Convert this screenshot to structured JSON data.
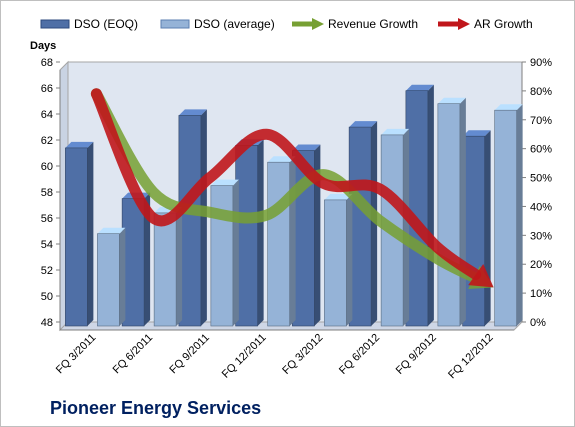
{
  "chart_data": {
    "type": "bar",
    "title": "Pioneer Energy Services",
    "ylabel": "Days",
    "categories": [
      "FQ 3/2011",
      "FQ 6/2011",
      "FQ 9/2011",
      "FQ 12/2011",
      "FQ 3/2012",
      "FQ 6/2012",
      "FQ 9/2012",
      "FQ 12/2012"
    ],
    "ylim": [
      48,
      68
    ],
    "yticks": [
      "48",
      "50",
      "52",
      "54",
      "56",
      "58",
      "60",
      "62",
      "64",
      "66",
      "68"
    ],
    "y2lim": [
      0,
      90
    ],
    "y2ticks": [
      "0%",
      "10%",
      "20%",
      "30%",
      "40%",
      "50%",
      "60%",
      "70%",
      "80%",
      "90%"
    ],
    "grid": false,
    "legend_position": "top",
    "series": [
      {
        "name": "DSO (EOQ)",
        "type": "bar",
        "color": "#4f6fa6",
        "values": [
          61.7,
          57.8,
          64.2,
          61.9,
          61.5,
          63.3,
          66.1,
          62.6
        ]
      },
      {
        "name": "DSO (average)",
        "type": "bar",
        "color": "#95b3d7",
        "values": [
          55.1,
          56.7,
          58.8,
          60.6,
          57.7,
          62.7,
          65.1,
          64.6
        ]
      },
      {
        "name": "Revenue Growth",
        "type": "line",
        "axis": "right",
        "color": "#77a033",
        "values": [
          79,
          45,
          38,
          37,
          51,
          35,
          22,
          12
        ]
      },
      {
        "name": "AR Growth",
        "type": "line",
        "axis": "right",
        "color": "#c0161b",
        "values": [
          79,
          36,
          50,
          65,
          48,
          46,
          26,
          12
        ]
      }
    ]
  }
}
